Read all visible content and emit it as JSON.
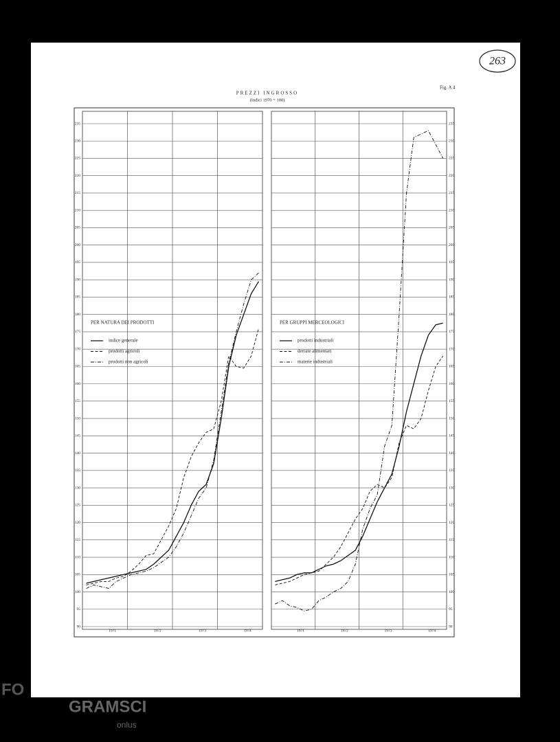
{
  "page": {
    "stamp": "263",
    "fig": "Fig. A 4",
    "title": "PREZZI INGROSSO",
    "subtitle": "(Indici 1970 = 100)",
    "watermark_prefix": "FO",
    "watermark": "GRAMSCI",
    "watermark_sub": "onlus"
  },
  "chart_data": [
    {
      "type": "line",
      "legend_title": "PER NATURA DEI PRODOTTI",
      "legend": "left",
      "grid": true,
      "y_axis_side": "left",
      "categories": [
        null,
        null,
        null,
        "1971",
        null,
        null,
        null,
        null,
        null,
        "1972",
        null,
        null,
        null,
        null,
        null,
        "1973",
        null,
        null,
        null,
        null,
        null,
        "1974",
        null,
        null
      ],
      "ylim": [
        90,
        235
      ],
      "yticks": [
        90,
        95,
        100,
        105,
        110,
        115,
        120,
        125,
        130,
        135,
        140,
        145,
        150,
        155,
        160,
        165,
        170,
        175,
        180,
        185,
        190,
        195,
        200,
        205,
        210,
        215,
        220,
        225,
        230,
        235
      ],
      "series": [
        {
          "name": "indice generale",
          "color": "#111111",
          "dash": "solid",
          "values": [
            102.5,
            103,
            103.5,
            104,
            104.5,
            105,
            105.5,
            106,
            106.5,
            108,
            110,
            112,
            116,
            120,
            125,
            129,
            131,
            137,
            150,
            165,
            174,
            180,
            186,
            189.5
          ]
        },
        {
          "name": "prodotti agricoli",
          "color": "#111111",
          "dash": "dashed",
          "values": [
            102,
            102.5,
            103,
            103,
            104,
            104.5,
            106,
            108,
            110.5,
            111,
            115,
            119,
            124,
            133,
            139,
            143,
            146,
            147,
            155,
            168,
            165,
            164.5,
            168,
            176
          ]
        },
        {
          "name": "prodotti non agricoli",
          "color": "#111111",
          "dash": "dashdot",
          "values": [
            101,
            102,
            101.5,
            101,
            103,
            104,
            105,
            105.5,
            106,
            107,
            108.5,
            110,
            113,
            117,
            122,
            127,
            130,
            138,
            152,
            166,
            175,
            183,
            190,
            192
          ]
        }
      ]
    },
    {
      "type": "line",
      "legend_title": "PER GRUPPI MERCEOLOGICI",
      "legend": "left",
      "grid": true,
      "y_axis_side": "right",
      "categories": [
        null,
        null,
        null,
        "1971",
        null,
        null,
        null,
        null,
        null,
        "1972",
        null,
        null,
        null,
        null,
        null,
        "1973",
        null,
        null,
        null,
        null,
        null,
        "1974",
        null,
        null
      ],
      "ylim": [
        90,
        235
      ],
      "yticks": [
        90,
        95,
        100,
        105,
        110,
        115,
        120,
        125,
        130,
        135,
        140,
        145,
        150,
        155,
        160,
        165,
        170,
        175,
        180,
        185,
        190,
        195,
        200,
        205,
        210,
        215,
        220,
        225,
        230,
        235
      ],
      "series": [
        {
          "name": "prodotti industriali",
          "color": "#111111",
          "dash": "solid",
          "values": [
            103,
            103.5,
            104,
            105,
            105.5,
            105.5,
            106.5,
            107.5,
            108,
            109,
            110.5,
            112,
            116,
            121,
            126,
            130,
            134,
            142,
            152,
            160,
            168,
            174,
            177,
            177.5
          ]
        },
        {
          "name": "derrate alimentari",
          "color": "#111111",
          "dash": "dashed",
          "values": [
            102,
            102.5,
            103,
            104,
            105,
            105.5,
            106,
            108,
            110,
            113,
            117,
            121,
            124,
            129,
            131,
            130,
            133,
            143,
            148,
            147,
            150,
            158,
            165,
            168
          ]
        },
        {
          "name": "materie industriali",
          "color": "#111111",
          "dash": "dashdot",
          "values": [
            96.5,
            97.5,
            96,
            95.5,
            94.5,
            95,
            97.5,
            98.5,
            100,
            101,
            103,
            108,
            118,
            124,
            128,
            142,
            148,
            180,
            215,
            231,
            232,
            233,
            229,
            225
          ]
        }
      ]
    }
  ]
}
